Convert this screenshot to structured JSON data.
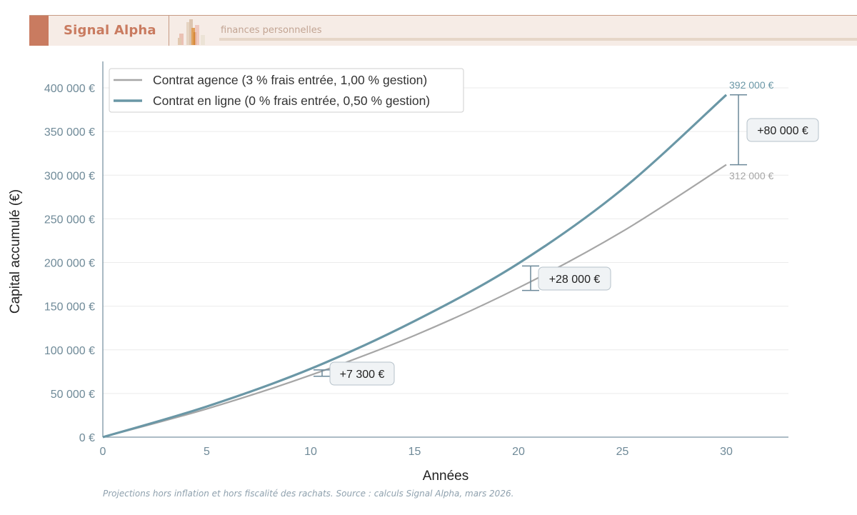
{
  "header": {
    "brand": "Signal Alpha",
    "tagline": "finances personnelles",
    "brand_color": "#c97b60"
  },
  "chart_data": {
    "type": "line",
    "title": "",
    "xlabel": "Années",
    "ylabel": "Capital accumulé (€)",
    "xlim": [
      0,
      33
    ],
    "ylim": [
      0,
      430000
    ],
    "grid": true,
    "legend_position": "upper left",
    "x_ticks": [
      "0",
      "5",
      "10",
      "15",
      "20",
      "25",
      "30"
    ],
    "y_ticks": [
      "0 €",
      "50 000 €",
      "100 000 €",
      "150 000 €",
      "200 000 €",
      "250 000 €",
      "300 000 €",
      "350 000 €",
      "400 000 €"
    ],
    "x": [
      0,
      5,
      10,
      15,
      20,
      25,
      30
    ],
    "series": [
      {
        "name": "Contrat agence (3 % frais entrée, 1,00 % gestion)",
        "color": "#a6a6a6",
        "values": [
          0,
          32400,
          71000,
          116500,
          171000,
          235500,
          312000
        ]
      },
      {
        "name": "Contrat en ligne (0 % frais entrée, 0,50 % gestion)",
        "color": "#6a97a6",
        "values": [
          0,
          35100,
          78300,
          133000,
          199000,
          284000,
          392000
        ]
      }
    ],
    "annotations": [
      {
        "x": 30,
        "label": "+80 000 €"
      },
      {
        "x": 20,
        "label": "+28 000 €"
      },
      {
        "x": 10,
        "label": "+7 300 €"
      },
      {
        "x": 30,
        "label": "392 000 €",
        "series": 1
      },
      {
        "x": 30,
        "label": "312 000 €",
        "series": 0
      }
    ]
  },
  "footnote": "Projections hors inflation et hors fiscalité des rachats. Source : calculs Signal Alpha, mars 2026."
}
